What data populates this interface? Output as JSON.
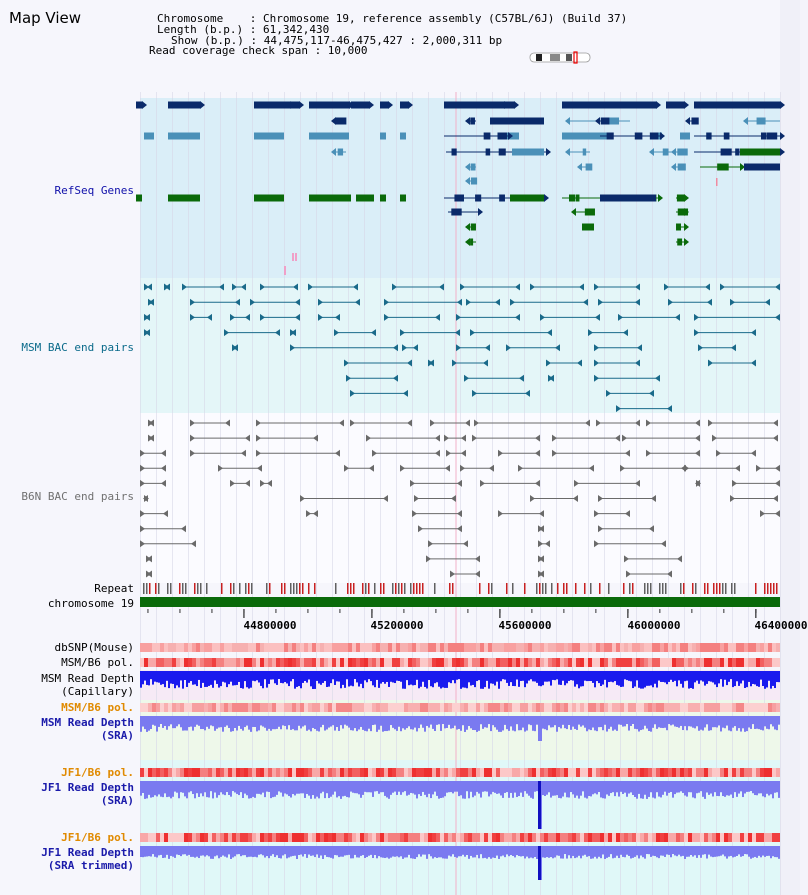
{
  "view_title": "Map View",
  "info": {
    "chromosome": "Chromosome    : Chromosome 19, reference assembly (C57BL/6J) (Build 37)",
    "length": "Length (b.p.) : 61,342,430",
    "show": "Show (b.p.) : 44,475,117-46,475,427 : 2,000,311 bp",
    "coverage_span": "Read coverage check span : 10,000"
  },
  "tracks": {
    "refseq": "RefSeq Genes",
    "msm_bac": "MSM BAC end pairs",
    "b6n_bac": "B6N BAC end pairs",
    "repeat": "Repeat",
    "chromosome": "chromosome 19",
    "dbsnp": "dbSNP(Mouse)",
    "msm_b6_pol": "MSM/B6 pol.",
    "msm_depth_cap_1": "MSM Read Depth",
    "msm_depth_cap_2": "(Capillary)",
    "msm_b6_pol_sra": "MSM/B6 pol.",
    "msm_depth_sra_1": "MSM Read Depth",
    "msm_depth_sra_2": "(SRA)",
    "jf1_b6_pol": "JF1/B6 pol.",
    "jf1_depth_sra_1": "JF1 Read Depth",
    "jf1_depth_sra_2": "(SRA)",
    "jf1_b6_pol_trim": "JF1/B6 pol.",
    "jf1_depth_trim_1": "JF1 Read Depth",
    "jf1_depth_trim_2": "(SRA trimmed)"
  },
  "axis": {
    "ticks": [
      "44800000",
      "45200000",
      "45600000",
      "46000000",
      "46400000"
    ],
    "tick_values": [
      44800000,
      45200000,
      45600000,
      46000000,
      46400000
    ],
    "range": [
      44475117,
      46475427
    ]
  },
  "colors": {
    "refseq_label": "#1010aa",
    "msm_label": "#0a6a8a",
    "b6n_label": "#707070",
    "orange_label": "#e08a00",
    "navy_label": "#1a1aaa",
    "gene_navy": "#0a2a6a",
    "gene_light": "#4a90b8",
    "gene_green": "#0a6a0a",
    "chromosome_bar": "#0a6a0a",
    "depth_blue": "#1a1aee",
    "depth_purple": "#7a7af0"
  }
}
